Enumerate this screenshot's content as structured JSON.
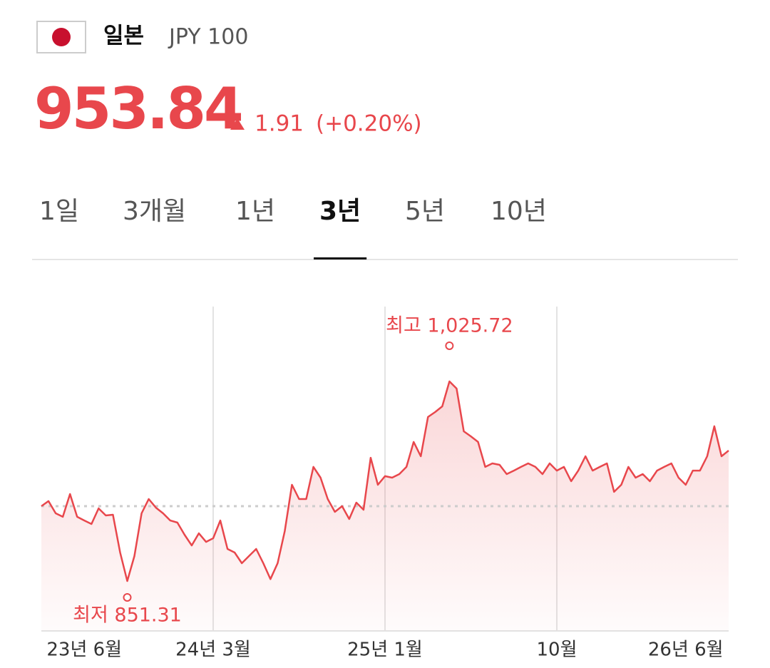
{
  "header": {
    "country": "일본",
    "currency": "JPY 100"
  },
  "quote": {
    "price": "953.84",
    "change": "1.91",
    "change_pct": "(+0.20%)"
  },
  "tabs": {
    "items": [
      "1일",
      "3개월",
      "1년",
      "3년",
      "5년",
      "10년"
    ],
    "active": 3
  },
  "chart_data": {
    "type": "line",
    "color": "#e8474c",
    "values": [
      916.7,
      921.1,
      910.5,
      907.4,
      927.3,
      907.4,
      904.2,
      901.1,
      914.8,
      908.6,
      909.2,
      876.2,
      851.31,
      873.1,
      910.5,
      922.9,
      915.4,
      910.5,
      904.2,
      902.4,
      891.8,
      882.4,
      893.0,
      885.5,
      888.7,
      904.2,
      879.3,
      876.2,
      866.9,
      873.1,
      879.3,
      866.9,
      853.0,
      866.9,
      894.9,
      935.4,
      922.9,
      922.9,
      951.0,
      941.6,
      922.9,
      911.7,
      916.7,
      905.5,
      919.8,
      913.6,
      959.0,
      935.4,
      942.9,
      941.6,
      944.7,
      951.0,
      972.8,
      960.3,
      994.6,
      998.9,
      1003.9,
      1025.72,
      1019.5,
      982.1,
      977.7,
      972.8,
      951.0,
      954.1,
      952.8,
      944.7,
      947.8,
      951.0,
      954.1,
      951.0,
      944.7,
      954.1,
      947.8,
      951.0,
      938.5,
      947.8,
      960.3,
      947.8,
      951.0,
      954.1,
      929.2,
      935.4,
      951.0,
      941.6,
      944.7,
      938.5,
      947.8,
      951.0,
      954.1,
      941.6,
      935.4,
      947.8,
      947.8,
      960.3,
      986.5,
      960.3,
      965.3
    ],
    "ylim": [
      807.7,
      1091.1
    ],
    "xticks": [
      {
        "value": 6,
        "label": "23년 6월"
      },
      {
        "value": 24,
        "label": "24년 3월"
      },
      {
        "value": 48,
        "label": "25년 1월"
      },
      {
        "value": 72,
        "label": "10월"
      },
      {
        "value": 90,
        "label": "26년 6월"
      }
    ],
    "baseline": 916.7,
    "annotations": [
      {
        "text": "최고 1,025.72",
        "index": 57,
        "position": "above"
      },
      {
        "text": "최저 851.31",
        "index": 12,
        "position": "below"
      }
    ]
  }
}
